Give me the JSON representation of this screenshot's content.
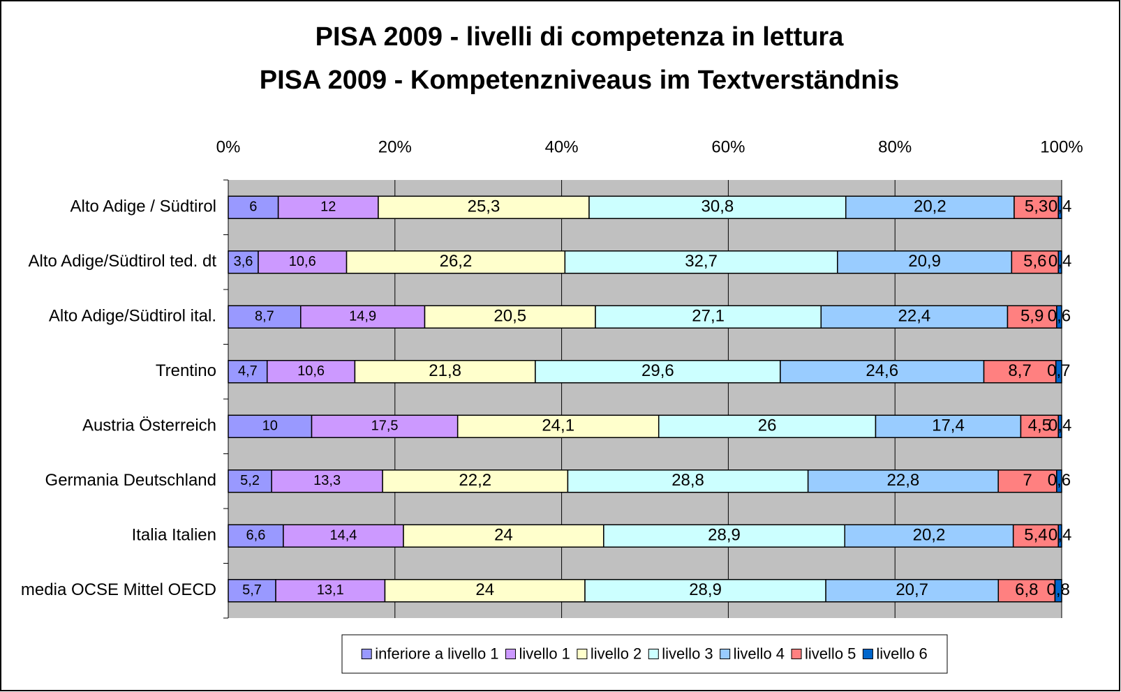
{
  "chart_data": {
    "type": "stacked_bar_100",
    "orientation": "horizontal",
    "title": [
      "PISA 2009 - livelli di competenza in lettura",
      "PISA 2009 - Kompetenzniveaus im Textverständnis"
    ],
    "categories": [
      "Alto Adige / Südtirol",
      "Alto Adige/Südtirol ted. dt",
      "Alto Adige/Südtirol ital.",
      "Trentino",
      "Austria Österreich",
      "Germania Deutschland",
      "Italia Italien",
      "media OCSE Mittel OECD"
    ],
    "series": [
      {
        "name": "inferiore a livello 1",
        "color": "#9999ff",
        "values": [
          6,
          3.6,
          8.7,
          4.7,
          10,
          5.2,
          6.6,
          5.7
        ],
        "value_labels": [
          "6",
          "3,6",
          "8,7",
          "4,7",
          "10",
          "5,2",
          "6,6",
          "5,7"
        ]
      },
      {
        "name": "livello 1",
        "color": "#cc99ff",
        "values": [
          12,
          10.6,
          14.9,
          10.6,
          17.5,
          13.3,
          14.4,
          13.1
        ],
        "value_labels": [
          "12",
          "10,6",
          "14,9",
          "10,6",
          "17,5",
          "13,3",
          "14,4",
          "13,1"
        ]
      },
      {
        "name": "livello 2",
        "color": "#ffffcc",
        "values": [
          25.3,
          26.2,
          20.5,
          21.8,
          24.1,
          22.2,
          24,
          24
        ],
        "value_labels": [
          "25,3",
          "26,2",
          "20,5",
          "21,8",
          "24,1",
          "22,2",
          "24",
          "24"
        ]
      },
      {
        "name": "livello 3",
        "color": "#ccffff",
        "values": [
          30.8,
          32.7,
          27.1,
          29.6,
          26,
          28.8,
          28.9,
          28.9
        ],
        "value_labels": [
          "30,8",
          "32,7",
          "27,1",
          "29,6",
          "26",
          "28,8",
          "28,9",
          "28,9"
        ]
      },
      {
        "name": "livello 4",
        "color": "#99ccff",
        "values": [
          20.2,
          20.9,
          22.4,
          24.6,
          17.4,
          22.8,
          20.2,
          20.7
        ],
        "value_labels": [
          "20,2",
          "20,9",
          "22,4",
          "24,6",
          "17,4",
          "22,8",
          "20,2",
          "20,7"
        ]
      },
      {
        "name": "livello 5",
        "color": "#ff8080",
        "values": [
          5.3,
          5.6,
          5.9,
          8.7,
          4.5,
          7,
          5.4,
          6.8
        ],
        "value_labels": [
          "5,3",
          "5,6",
          "5,9",
          "8,7",
          "4,5",
          "7",
          "5,4",
          "6,8"
        ]
      },
      {
        "name": "livello 6",
        "color": "#0066cc",
        "values": [
          0.4,
          0.4,
          0.6,
          0.7,
          0.4,
          0.6,
          0.4,
          0.8
        ],
        "value_labels": [
          "0,4",
          "0,4",
          "0,6",
          "0,7",
          "0,4",
          "0,6",
          "0,4",
          "0,8"
        ]
      }
    ],
    "xlim": [
      0,
      100
    ],
    "xticks": [
      {
        "value": 0,
        "label": "0%"
      },
      {
        "value": 20,
        "label": "20%"
      },
      {
        "value": 40,
        "label": "40%"
      },
      {
        "value": 60,
        "label": "60%"
      },
      {
        "value": 80,
        "label": "80%"
      },
      {
        "value": 100,
        "label": "100%"
      }
    ],
    "plot_background": "#c0c0c0",
    "grid": true,
    "legend": "bottom"
  }
}
